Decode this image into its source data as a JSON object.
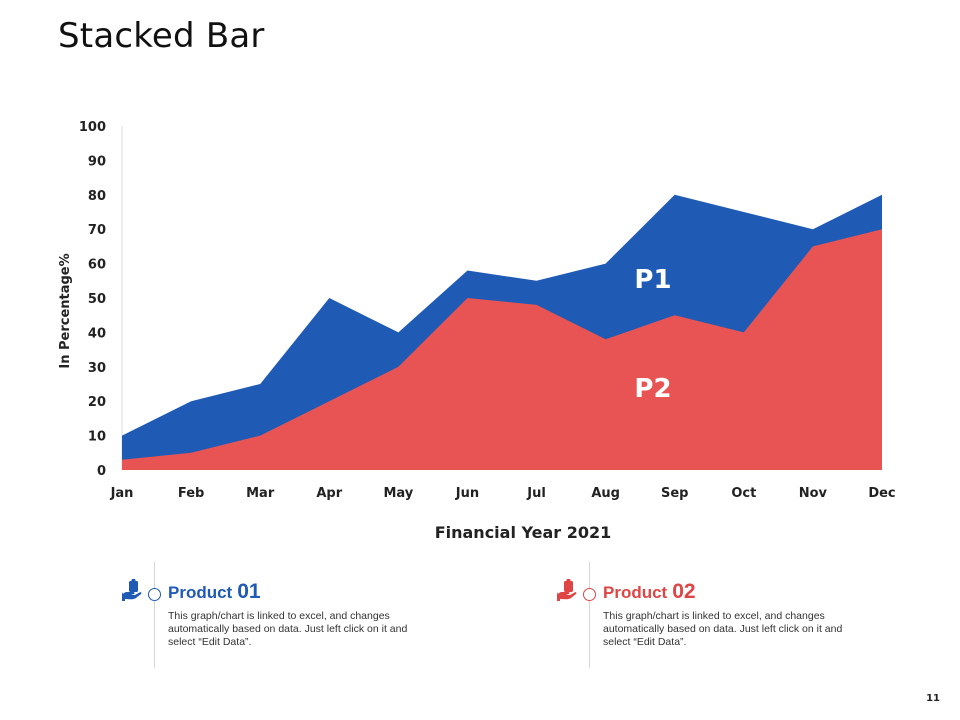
{
  "slide": {
    "title": "Stacked Bar",
    "page_number": "11"
  },
  "chart_data": {
    "type": "area",
    "stacked": false,
    "title": "Stacked Bar",
    "xlabel": "Financial Year 2021",
    "ylabel": "In Percentage%",
    "categories": [
      "Jan",
      "Feb",
      "Mar",
      "Apr",
      "May",
      "Jun",
      "Jul",
      "Aug",
      "Sep",
      "Oct",
      "Nov",
      "Dec"
    ],
    "ylim": [
      0,
      100
    ],
    "yticks": [
      0,
      10,
      20,
      30,
      40,
      50,
      60,
      70,
      80,
      90,
      100
    ],
    "series": [
      {
        "name": "P1",
        "color": "#1f5bb5",
        "values": [
          10,
          20,
          25,
          50,
          40,
          58,
          55,
          60,
          80,
          75,
          70,
          80
        ]
      },
      {
        "name": "P2",
        "color": "#e85454",
        "values": [
          3,
          5,
          10,
          20,
          30,
          50,
          48,
          38,
          45,
          40,
          65,
          70
        ]
      }
    ],
    "grid": false
  },
  "products": [
    {
      "word": "Product",
      "number": "01",
      "description": "This graph/chart is linked to excel, and changes automatically based on data.  Just left click on it and select “Edit Data”.",
      "icon": "hand-clipboard-icon",
      "color": "#1f5bb5"
    },
    {
      "word": "Product",
      "number": "02",
      "description": "This graph/chart is linked to excel, and changes automatically based on data.  Just left click on it and select “Edit Data”.",
      "icon": "hand-clipboard-icon",
      "color": "#e04545"
    }
  ]
}
